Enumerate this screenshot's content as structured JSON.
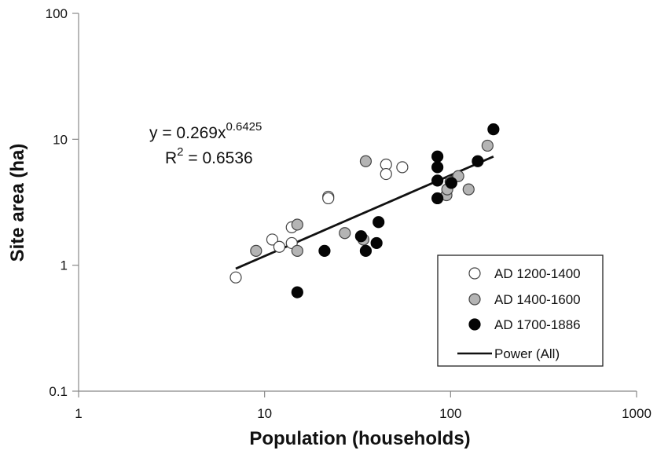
{
  "chart_data": {
    "type": "scatter",
    "xscale": "log",
    "yscale": "log",
    "xlim": [
      1,
      1000
    ],
    "ylim": [
      0.1,
      100
    ],
    "xlabel": "Population (households)",
    "ylabel": "Site area (ha)",
    "x_ticks": [
      "1",
      "10",
      "100",
      "1000"
    ],
    "y_ticks": [
      "0.1",
      "1",
      "10",
      "100"
    ],
    "legend_position": "bottom-right",
    "series": [
      {
        "name": "AD 1200-1400",
        "fill": "#ffffff",
        "stroke": "#444444",
        "points": [
          [
            7,
            0.8
          ],
          [
            11,
            1.6
          ],
          [
            12,
            1.4
          ],
          [
            14,
            1.5
          ],
          [
            14,
            2.0
          ],
          [
            22,
            3.5
          ],
          [
            22,
            3.4
          ],
          [
            45,
            6.3
          ],
          [
            45,
            5.3
          ],
          [
            55,
            6.0
          ]
        ]
      },
      {
        "name": "AD 1400-1600",
        "fill": "#b4b4b4",
        "stroke": "#444444",
        "points": [
          [
            9,
            1.3
          ],
          [
            15,
            2.1
          ],
          [
            15,
            1.3
          ],
          [
            27,
            1.8
          ],
          [
            35,
            6.7
          ],
          [
            34,
            1.6
          ],
          [
            95,
            3.6
          ],
          [
            96,
            4.0
          ],
          [
            100,
            4.6
          ],
          [
            110,
            5.1
          ],
          [
            125,
            4.0
          ],
          [
            158,
            8.9
          ]
        ]
      },
      {
        "name": "AD 1700-1886",
        "fill": "#050505",
        "stroke": "#050505",
        "points": [
          [
            15,
            0.61
          ],
          [
            21,
            1.3
          ],
          [
            33,
            1.7
          ],
          [
            35,
            1.3
          ],
          [
            40,
            1.5
          ],
          [
            41,
            2.2
          ],
          [
            85,
            7.3
          ],
          [
            85,
            6.0
          ],
          [
            85,
            4.7
          ],
          [
            85,
            3.4
          ],
          [
            101,
            4.5
          ],
          [
            140,
            6.7
          ],
          [
            170,
            12.0
          ]
        ]
      }
    ],
    "trendline": {
      "name": "Power (All)",
      "a": 0.269,
      "b": 0.6425,
      "x_range": [
        7,
        170
      ],
      "color": "#111111",
      "equation_prefix": "y = 0.269x",
      "equation_exponent": "0.6425",
      "r2_prefix": "R",
      "r2_sup": "2",
      "r2_value": " = 0.6536"
    }
  }
}
